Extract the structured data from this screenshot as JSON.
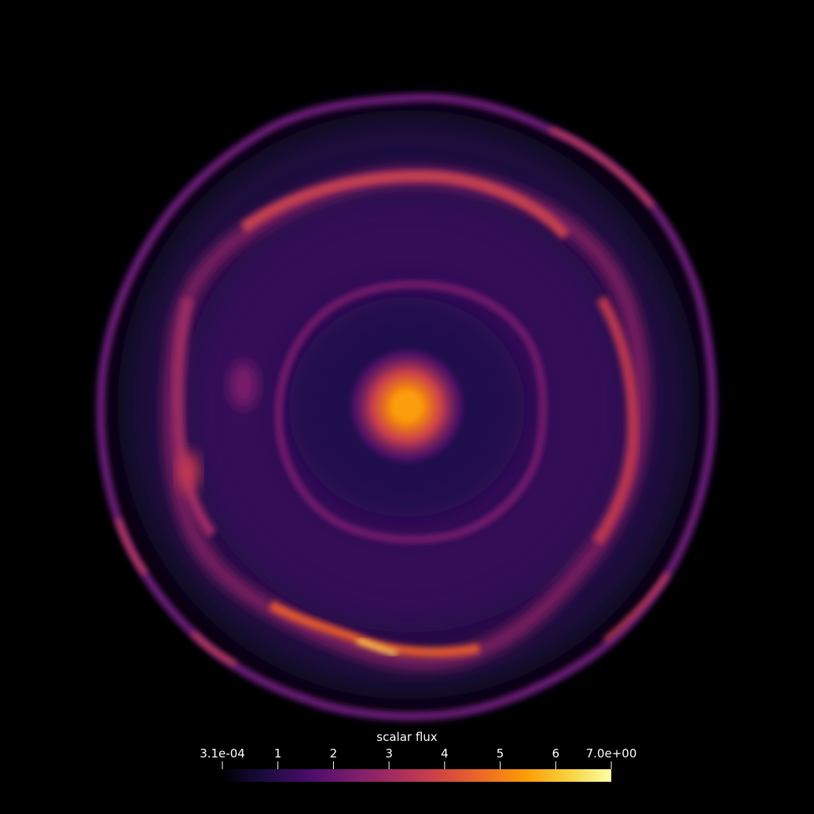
{
  "colorbar": {
    "title": "scalar flux",
    "range": [
      0.00031,
      7.0
    ],
    "ticks": [
      {
        "value": 0.00031,
        "label": "3.1e-04"
      },
      {
        "value": 1,
        "label": "1"
      },
      {
        "value": 2,
        "label": "2"
      },
      {
        "value": 3,
        "label": "3"
      },
      {
        "value": 4,
        "label": "4"
      },
      {
        "value": 5,
        "label": "5"
      },
      {
        "value": 6,
        "label": "6"
      },
      {
        "value": 7.0,
        "label": "7.0e+00"
      }
    ],
    "colormap": "inferno",
    "colormap_stops": [
      "#000004",
      "#1b0c41",
      "#4a0c6b",
      "#781c6d",
      "#a52c60",
      "#cf4446",
      "#ed6925",
      "#fb9b06",
      "#f7d13d",
      "#fcffa4"
    ]
  },
  "background_color": "#000000"
}
